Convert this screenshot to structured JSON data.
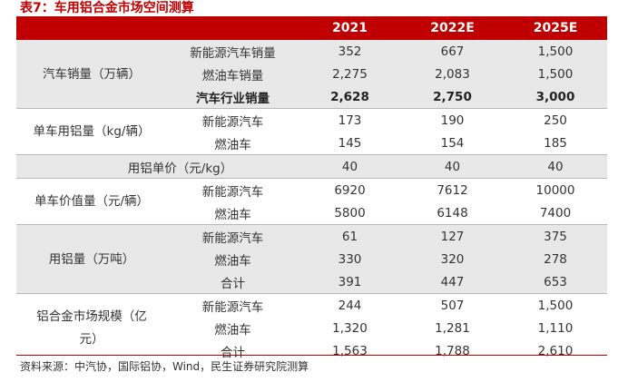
{
  "title": "表7：车用铝合金市场空间测算",
  "columns": [
    "",
    "",
    "2021",
    "2022E",
    "2025E"
  ],
  "groups": [
    {
      "category": "汽车销量（万辆）",
      "rows": [
        {
          "sub": "新能源汽车销量",
          "values": [
            "352",
            "667",
            "1,500"
          ],
          "bold": false
        },
        {
          "sub": "燃油车销量",
          "values": [
            "2,275",
            "2,083",
            "1,500"
          ],
          "bold": false
        },
        {
          "sub": "汽车行业销量",
          "values": [
            "2,628",
            "2,750",
            "3,000"
          ],
          "bold": true
        }
      ]
    },
    {
      "category": "单车用铝量（kg/辆）",
      "rows": [
        {
          "sub": "新能源汽车",
          "values": [
            "173",
            "190",
            "250"
          ],
          "bold": false
        },
        {
          "sub": "燃油车",
          "values": [
            "145",
            "154",
            "185"
          ],
          "bold": false
        }
      ]
    },
    {
      "category": "用铝单价（元/kg）",
      "rows": [
        {
          "sub": "",
          "values": [
            "40",
            "40",
            "40"
          ],
          "bold": false
        }
      ]
    },
    {
      "category": "单车价值量（元/辆）",
      "rows": [
        {
          "sub": "新能源汽车",
          "values": [
            "6920",
            "7612",
            "10000"
          ],
          "bold": false
        },
        {
          "sub": "燃油车",
          "values": [
            "5800",
            "6148",
            "7400"
          ],
          "bold": false
        }
      ]
    },
    {
      "category": "用铝量（万吨）",
      "rows": [
        {
          "sub": "新能源汽车",
          "values": [
            "61",
            "127",
            "375"
          ],
          "bold": false
        },
        {
          "sub": "燃油车",
          "values": [
            "330",
            "320",
            "278"
          ],
          "bold": false
        },
        {
          "sub": "合计",
          "values": [
            "391",
            "447",
            "653"
          ],
          "bold": false
        }
      ]
    },
    {
      "category": "铝合金市场规模（亿元）",
      "rows": [
        {
          "sub": "新能源汽车",
          "values": [
            "244",
            "507",
            "1,500"
          ],
          "bold": false
        },
        {
          "sub": "燃油车",
          "values": [
            "1,320",
            "1,281",
            "1,110"
          ],
          "bold": false
        },
        {
          "sub": "合计",
          "values": [
            "1,563",
            "1,788",
            "2,610"
          ],
          "bold": false
        }
      ]
    }
  ],
  "source": "资料来源：中汽协，国际铝协，Wind，民生证券研究院测算",
  "colors": {
    "header_red": "#c00000",
    "band_gray": "#e8e8e8"
  }
}
